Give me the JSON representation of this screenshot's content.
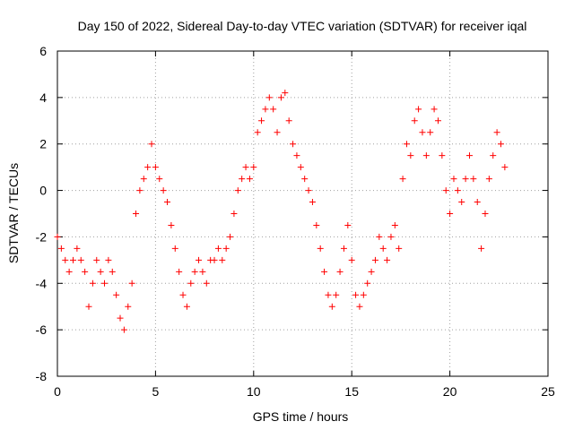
{
  "chart_data": {
    "type": "scatter",
    "title": "Day 150 of 2022, Sidereal Day-to-day VTEC variation (SDTVAR) for receiver iqal",
    "xlabel": "GPS time / hours",
    "ylabel": "SDTVAR / TECUs",
    "xlim": [
      0,
      25
    ],
    "ylim": [
      -8,
      6
    ],
    "xticks": [
      0,
      5,
      10,
      15,
      20,
      25
    ],
    "yticks": [
      -8,
      -6,
      -4,
      -2,
      0,
      2,
      4,
      6
    ],
    "grid": true,
    "marker": "+",
    "color": "#ff0000",
    "series": [
      {
        "name": "SDTVAR",
        "x": [
          0.0,
          0.2,
          0.4,
          0.6,
          0.8,
          1.0,
          1.2,
          1.4,
          1.6,
          1.8,
          2.0,
          2.2,
          2.4,
          2.6,
          2.8,
          3.0,
          3.2,
          3.4,
          3.6,
          3.8,
          4.0,
          4.2,
          4.4,
          4.6,
          4.8,
          5.0,
          5.2,
          5.4,
          5.6,
          5.8,
          6.0,
          6.2,
          6.4,
          6.6,
          6.8,
          7.0,
          7.2,
          7.4,
          7.6,
          7.8,
          8.0,
          8.2,
          8.4,
          8.6,
          8.8,
          9.0,
          9.2,
          9.4,
          9.6,
          9.8,
          10.0,
          10.2,
          10.4,
          10.6,
          10.8,
          11.0,
          11.2,
          11.4,
          11.6,
          11.8,
          12.0,
          12.2,
          12.4,
          12.6,
          12.8,
          13.0,
          13.2,
          13.4,
          13.6,
          13.8,
          14.0,
          14.2,
          14.4,
          14.6,
          14.8,
          15.0,
          15.2,
          15.4,
          15.6,
          15.8,
          16.0,
          16.2,
          16.4,
          16.6,
          16.8,
          17.0,
          17.2,
          17.4,
          17.6,
          17.8,
          18.0,
          18.2,
          18.4,
          18.6,
          18.8,
          19.0,
          19.2,
          19.4,
          19.6,
          19.8,
          20.0,
          20.2,
          20.4,
          20.6,
          20.8,
          21.0,
          21.2,
          21.4,
          21.6,
          21.8,
          22.0,
          22.2,
          22.4,
          22.6,
          22.8
        ],
        "y": [
          -2.0,
          -2.5,
          -3.0,
          -3.5,
          -3.0,
          -2.5,
          -3.0,
          -3.5,
          -5.0,
          -4.0,
          -3.0,
          -3.5,
          -4.0,
          -3.0,
          -3.5,
          -4.5,
          -5.5,
          -6.0,
          -5.0,
          -4.0,
          -1.0,
          0.0,
          0.5,
          1.0,
          2.0,
          1.0,
          0.5,
          0.0,
          -0.5,
          -1.5,
          -2.5,
          -3.5,
          -4.5,
          -5.0,
          -4.0,
          -3.5,
          -3.0,
          -3.5,
          -4.0,
          -3.0,
          -3.0,
          -2.5,
          -3.0,
          -2.5,
          -2.0,
          -1.0,
          0.0,
          0.5,
          1.0,
          0.5,
          1.0,
          2.5,
          3.0,
          3.5,
          4.0,
          3.5,
          2.5,
          4.0,
          4.2,
          3.0,
          2.0,
          1.5,
          1.0,
          0.5,
          0.0,
          -0.5,
          -1.5,
          -2.5,
          -3.5,
          -4.5,
          -5.0,
          -4.5,
          -3.5,
          -2.5,
          -1.5,
          -3.0,
          -4.5,
          -5.0,
          -4.5,
          -4.0,
          -3.5,
          -3.0,
          -2.0,
          -2.5,
          -3.0,
          -2.0,
          -1.5,
          -2.5,
          0.5,
          2.0,
          1.5,
          3.0,
          3.5,
          2.5,
          1.5,
          2.5,
          3.5,
          3.0,
          1.5,
          0.0,
          -1.0,
          0.5,
          0.0,
          -0.5,
          0.5,
          1.5,
          0.5,
          -0.5,
          -2.5,
          -1.0,
          0.5,
          1.5,
          2.5,
          2.0,
          1.0
        ]
      }
    ]
  }
}
